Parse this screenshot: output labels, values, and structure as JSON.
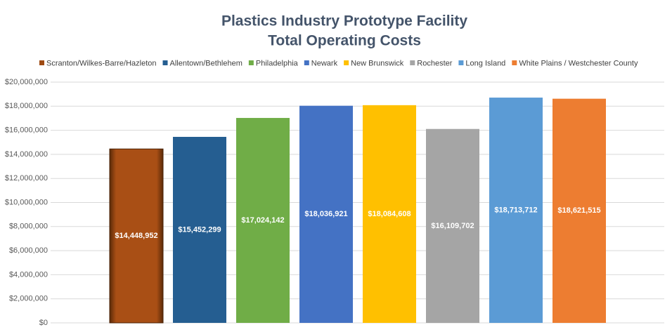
{
  "chart_data": {
    "type": "bar",
    "title": "Plastics Industry Prototype Facility",
    "subtitle": "Total Operating Costs",
    "categories": [
      null
    ],
    "series": [
      {
        "name": "Scranton/Wilkes-Barre/Hazleton",
        "color": "#9e4a12",
        "values": [
          14448952
        ],
        "value_labels": [
          "$14,448,952"
        ]
      },
      {
        "name": "Allentown/Bethlehem",
        "color": "#255e91",
        "values": [
          15452299
        ],
        "value_labels": [
          "$15,452,299"
        ]
      },
      {
        "name": "Philadelphia",
        "color": "#70ad47",
        "values": [
          17024142
        ],
        "value_labels": [
          "$17,024,142"
        ]
      },
      {
        "name": "Newark",
        "color": "#4472c4",
        "values": [
          18036921
        ],
        "value_labels": [
          "$18,036,921"
        ]
      },
      {
        "name": "New Brunswick",
        "color": "#ffc000",
        "values": [
          18084608
        ],
        "value_labels": [
          "$18,084,608"
        ]
      },
      {
        "name": "Rochester",
        "color": "#a5a5a5",
        "values": [
          16109702
        ],
        "value_labels": [
          "$16,109,702"
        ]
      },
      {
        "name": "Long Island",
        "color": "#5b9bd5",
        "values": [
          18713712
        ],
        "value_labels": [
          "$18,713,712"
        ]
      },
      {
        "name": "White Plains / Westchester County",
        "color": "#ed7d31",
        "values": [
          18621515
        ],
        "value_labels": [
          "$18,621,515"
        ]
      }
    ],
    "ylim": [
      0,
      20000000
    ],
    "yticks": [
      {
        "value": 0,
        "label": "$0"
      },
      {
        "value": 2000000,
        "label": "$2,000,000"
      },
      {
        "value": 4000000,
        "label": "$4,000,000"
      },
      {
        "value": 6000000,
        "label": "$6,000,000"
      },
      {
        "value": 8000000,
        "label": "$8,000,000"
      },
      {
        "value": 10000000,
        "label": "$10,000,000"
      },
      {
        "value": 12000000,
        "label": "$12,000,000"
      },
      {
        "value": 14000000,
        "label": "$14,000,000"
      },
      {
        "value": 16000000,
        "label": "$16,000,000"
      },
      {
        "value": 18000000,
        "label": "$18,000,000"
      },
      {
        "value": 20000000,
        "label": "$20,000,000"
      }
    ],
    "grid": true,
    "legend": "top"
  }
}
